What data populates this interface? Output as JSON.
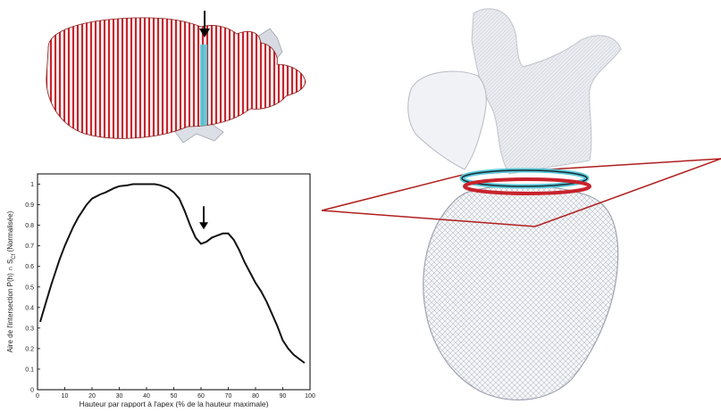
{
  "chart_data": {
    "type": "line",
    "title": "",
    "xlabel": "Hauteur par rapport à l'apex (% de la hauteur maximale)",
    "ylabel_prefix": "Aire de l'intersection P(h) ∩ S",
    "ylabel_subscript": "Cf",
    "ylabel_suffix": " (Normalisée)",
    "xlim": [
      0,
      100
    ],
    "ylim": [
      0,
      1.05
    ],
    "xticks": [
      "0",
      "10",
      "20",
      "30",
      "40",
      "50",
      "60",
      "70",
      "80",
      "90",
      "100"
    ],
    "yticks": [
      "0",
      "0.1",
      "0.2",
      "0.3",
      "0.4",
      "0.5",
      "0.6",
      "0.7",
      "0.8",
      "0.9",
      "1"
    ],
    "grid": false,
    "series": [
      {
        "x": [
          1,
          3,
          5,
          8,
          10,
          13,
          15,
          18,
          20,
          23,
          25,
          28,
          30,
          33,
          35,
          38,
          40,
          43,
          45,
          48,
          50,
          52,
          54,
          56,
          58,
          60,
          62,
          64,
          66,
          68,
          70,
          72,
          74,
          76,
          78,
          80,
          82,
          84,
          86,
          88,
          90,
          92,
          94,
          96,
          98
        ],
        "y": [
          0.33,
          0.42,
          0.51,
          0.63,
          0.7,
          0.79,
          0.84,
          0.9,
          0.93,
          0.95,
          0.96,
          0.98,
          0.99,
          0.995,
          1.0,
          1.0,
          1.0,
          1.0,
          0.995,
          0.98,
          0.96,
          0.93,
          0.87,
          0.8,
          0.74,
          0.71,
          0.72,
          0.74,
          0.75,
          0.76,
          0.76,
          0.73,
          0.68,
          0.62,
          0.57,
          0.52,
          0.48,
          0.43,
          0.37,
          0.31,
          0.24,
          0.2,
          0.17,
          0.15,
          0.13
        ]
      }
    ],
    "annotations": [
      {
        "type": "arrow",
        "x": 61,
        "y": 0.78,
        "direction": "down"
      }
    ]
  },
  "colors": {
    "line": "#111111",
    "slice_red": "#c8232c",
    "highlight_cyan": "#56c8d8",
    "mesh_gray": "#c9ccd6",
    "plane_red": "#b01e1e"
  },
  "figure": {
    "left_panel": "heart-slices-3d",
    "right_panel": "heart-mesh-3d-with-plane"
  }
}
